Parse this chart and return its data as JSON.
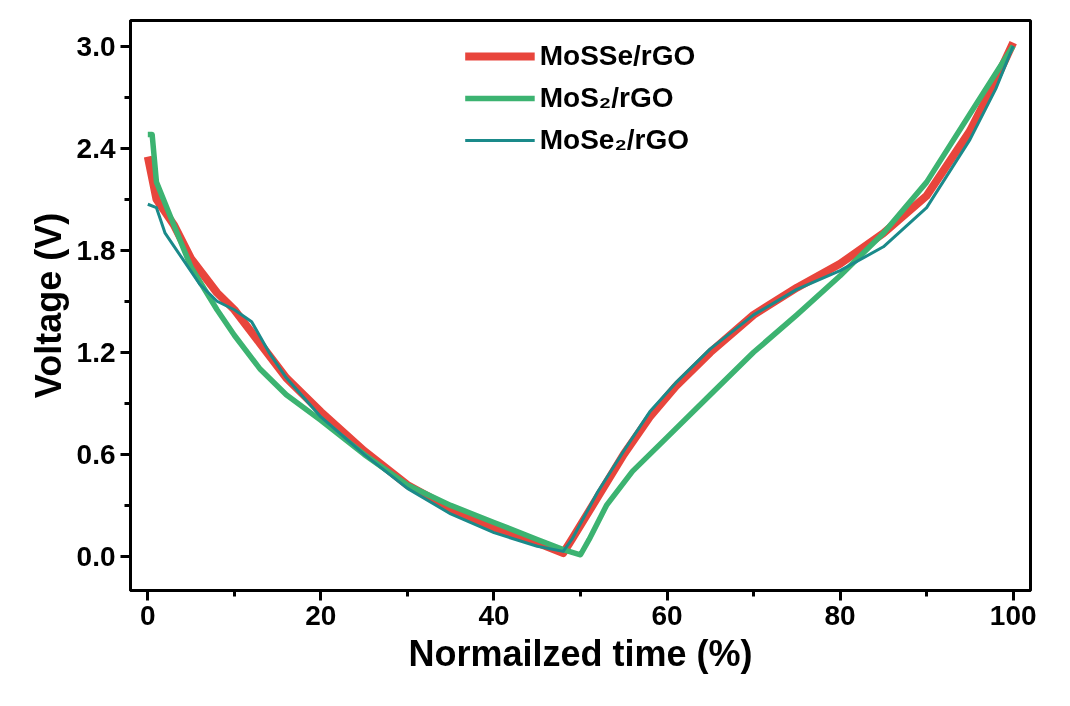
{
  "chart_data": {
    "type": "line",
    "xlabel": "Normailzed time (%)",
    "ylabel": "Voltage (V)",
    "xlim": [
      -2,
      102
    ],
    "ylim": [
      -0.2,
      3.15
    ],
    "xticks": [
      0,
      20,
      40,
      60,
      80,
      100
    ],
    "yticks": [
      {
        "value": 0,
        "label": "0.0"
      },
      0.6,
      1.2,
      1.8,
      2.4,
      {
        "value": 3,
        "label": "3.0"
      }
    ],
    "grid": false,
    "legend": "top",
    "marker": "none",
    "line_style": "solid",
    "series": [
      {
        "name": "MoSSe/rGO",
        "color": "#e8453c",
        "x": [
          0,
          1,
          3,
          5,
          8,
          10,
          13,
          16,
          20,
          25,
          30,
          35,
          40,
          45,
          48,
          49,
          52,
          55,
          58,
          61,
          65,
          70,
          75,
          80,
          85,
          90,
          95,
          98,
          100
        ],
        "values": [
          2.35,
          2.1,
          1.95,
          1.75,
          1.55,
          1.45,
          1.25,
          1.05,
          0.85,
          0.62,
          0.42,
          0.28,
          0.17,
          0.08,
          0.02,
          0.1,
          0.35,
          0.6,
          0.82,
          1.0,
          1.2,
          1.42,
          1.58,
          1.72,
          1.9,
          2.12,
          2.5,
          2.8,
          3.02
        ]
      },
      {
        "name": "MoS₂/rGO",
        "color": "#3cb371",
        "x": [
          0,
          0.5,
          1,
          3,
          5,
          8,
          10,
          13,
          16,
          20,
          25,
          30,
          35,
          40,
          45,
          48,
          50,
          51,
          53,
          56,
          60,
          65,
          70,
          75,
          80,
          85,
          90,
          95,
          100
        ],
        "values": [
          2.48,
          2.48,
          2.2,
          1.95,
          1.7,
          1.45,
          1.3,
          1.1,
          0.95,
          0.8,
          0.6,
          0.42,
          0.3,
          0.2,
          0.1,
          0.04,
          0.01,
          0.1,
          0.3,
          0.5,
          0.7,
          0.95,
          1.2,
          1.42,
          1.65,
          1.9,
          2.2,
          2.6,
          3.0
        ]
      },
      {
        "name": "MoSe₂/rGO",
        "color": "#1a8a8a",
        "x": [
          0,
          1,
          2,
          4,
          6,
          8,
          10,
          12,
          14,
          16,
          20,
          25,
          30,
          35,
          40,
          45,
          48,
          49,
          52,
          55,
          58,
          61,
          65,
          70,
          75,
          80,
          85,
          90,
          95,
          98,
          100
        ],
        "values": [
          2.07,
          2.05,
          1.9,
          1.75,
          1.6,
          1.5,
          1.45,
          1.38,
          1.2,
          1.05,
          0.82,
          0.6,
          0.4,
          0.25,
          0.14,
          0.06,
          0.03,
          0.1,
          0.38,
          0.62,
          0.85,
          1.02,
          1.22,
          1.42,
          1.57,
          1.68,
          1.82,
          2.05,
          2.45,
          2.75,
          3.0
        ]
      }
    ]
  }
}
